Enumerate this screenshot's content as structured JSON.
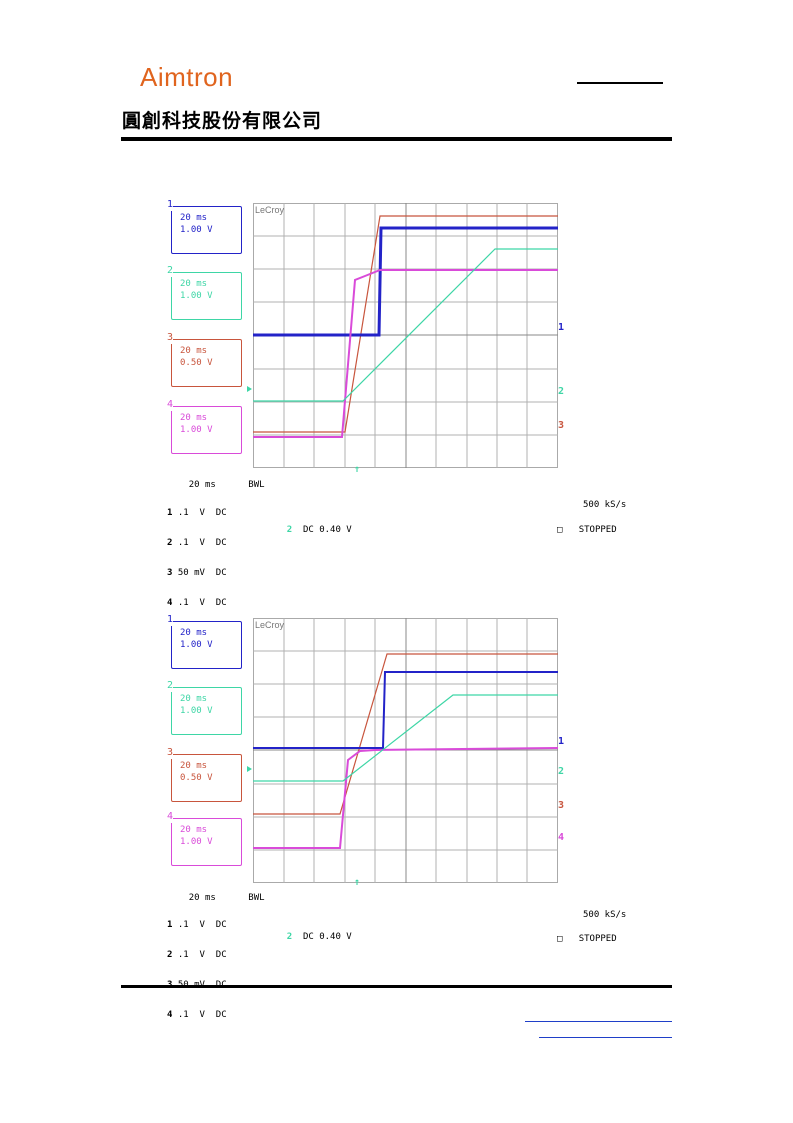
{
  "header": {
    "logo_text": "Aimtron",
    "company_cn": "圓創科技股份有限公司"
  },
  "colors": {
    "ch1": "#2323c8",
    "ch2": "#3ed6a6",
    "ch3": "#c8553d",
    "ch4": "#d94bd9",
    "grid": "#b0b0b0",
    "logo": "#e0641e"
  },
  "scopes": [
    {
      "brand": "LeCroy",
      "channels": [
        {
          "num": "1",
          "time": "20 ms",
          "volt": "1.00 V"
        },
        {
          "num": "2",
          "time": "20 ms",
          "volt": "1.00 V"
        },
        {
          "num": "3",
          "time": "20 ms",
          "volt": "0.50 V"
        },
        {
          "num": "4",
          "time": "20 ms",
          "volt": "1.00 V"
        }
      ],
      "timebase": "20 ms",
      "bwl": "BWL",
      "coupling": [
        {
          "num": "1",
          "value": ".1  V  DC"
        },
        {
          "num": "2",
          "value": ".1  V  DC"
        },
        {
          "num": "3",
          "value": "50 mV  DC"
        },
        {
          "num": "4",
          "value": ".1  V  DC"
        }
      ],
      "trigger_channel": "2",
      "trigger_level": "DC 0.40 V",
      "sample_rate": "500 kS/s",
      "status": "STOPPED"
    },
    {
      "brand": "LeCroy",
      "channels": [
        {
          "num": "1",
          "time": "20 ms",
          "volt": "1.00 V"
        },
        {
          "num": "2",
          "time": "20 ms",
          "volt": "1.00 V"
        },
        {
          "num": "3",
          "time": "20 ms",
          "volt": "0.50 V"
        },
        {
          "num": "4",
          "time": "20 ms",
          "volt": "1.00 V"
        }
      ],
      "timebase": "20 ms",
      "bwl": "BWL",
      "coupling": [
        {
          "num": "1",
          "value": ".1  V  DC"
        },
        {
          "num": "2",
          "value": ".1  V  DC"
        },
        {
          "num": "3",
          "value": "50 mV  DC"
        },
        {
          "num": "4",
          "value": ".1  V  DC"
        }
      ],
      "trigger_channel": "2",
      "trigger_level": "DC 0.40 V",
      "sample_rate": "500 kS/s",
      "status": "STOPPED"
    }
  ]
}
